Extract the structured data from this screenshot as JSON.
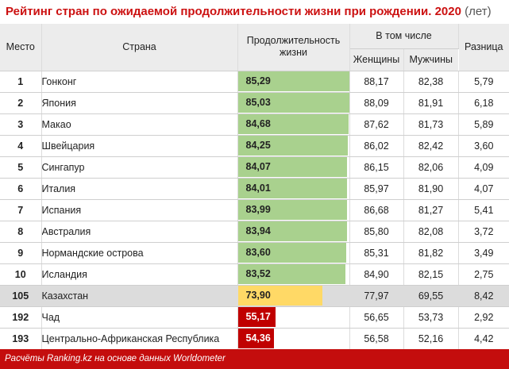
{
  "header": {
    "title": "Рейтинг стран по ожидаемой продолжительности жизни при рождении. 2020",
    "unit": "(лет)"
  },
  "columns": {
    "place": "Место",
    "country": "Страна",
    "life": "Продолжительность жизни",
    "group": "В том числе",
    "women": "Женщины",
    "men": "Мужчины",
    "diff": "Разница"
  },
  "colors": {
    "green": "#a9d18e",
    "yellow": "#ffd966",
    "red": "#c00000",
    "highlight": "#dcdcdc",
    "header": "#ececec",
    "footer": "#c40d0d"
  },
  "chart_data": {
    "type": "table",
    "bar_color_rule": "rank<=10 green, Kazakhstan yellow, bottom red",
    "rows": [
      {
        "rank": "1",
        "country": "Гонконг",
        "life": 85.29,
        "life_label": "85,29",
        "women": "88,17",
        "men": "82,38",
        "diff": "5,79",
        "tier": "green"
      },
      {
        "rank": "2",
        "country": "Япония",
        "life": 85.03,
        "life_label": "85,03",
        "women": "88,09",
        "men": "81,91",
        "diff": "6,18",
        "tier": "green"
      },
      {
        "rank": "3",
        "country": "Макао",
        "life": 84.68,
        "life_label": "84,68",
        "women": "87,62",
        "men": "81,73",
        "diff": "5,89",
        "tier": "green"
      },
      {
        "rank": "4",
        "country": "Швейцария",
        "life": 84.25,
        "life_label": "84,25",
        "women": "86,02",
        "men": "82,42",
        "diff": "3,60",
        "tier": "green"
      },
      {
        "rank": "5",
        "country": "Сингапур",
        "life": 84.07,
        "life_label": "84,07",
        "women": "86,15",
        "men": "82,06",
        "diff": "4,09",
        "tier": "green"
      },
      {
        "rank": "6",
        "country": "Италия",
        "life": 84.01,
        "life_label": "84,01",
        "women": "85,97",
        "men": "81,90",
        "diff": "4,07",
        "tier": "green"
      },
      {
        "rank": "7",
        "country": "Испания",
        "life": 83.99,
        "life_label": "83,99",
        "women": "86,68",
        "men": "81,27",
        "diff": "5,41",
        "tier": "green"
      },
      {
        "rank": "8",
        "country": "Австралия",
        "life": 83.94,
        "life_label": "83,94",
        "women": "85,80",
        "men": "82,08",
        "diff": "3,72",
        "tier": "green"
      },
      {
        "rank": "9",
        "country": "Нормандские острова",
        "life": 83.6,
        "life_label": "83,60",
        "women": "85,31",
        "men": "81,82",
        "diff": "3,49",
        "tier": "green"
      },
      {
        "rank": "10",
        "country": "Исландия",
        "life": 83.52,
        "life_label": "83,52",
        "women": "84,90",
        "men": "82,15",
        "diff": "2,75",
        "tier": "green"
      },
      {
        "rank": "105",
        "country": "Казахстан",
        "life": 73.9,
        "life_label": "73,90",
        "women": "77,97",
        "men": "69,55",
        "diff": "8,42",
        "tier": "yellow",
        "highlight": true
      },
      {
        "rank": "192",
        "country": "Чад",
        "life": 55.17,
        "life_label": "55,17",
        "women": "56,65",
        "men": "53,73",
        "diff": "2,92",
        "tier": "red"
      },
      {
        "rank": "193",
        "country": "Центрально-Африканская Республика",
        "life": 54.36,
        "life_label": "54,36",
        "women": "56,58",
        "men": "52,16",
        "diff": "4,42",
        "tier": "red"
      }
    ],
    "bar_max": 85.29
  },
  "footer": {
    "source": "Расчёты Ranking.kz на основе данных Worldometer"
  }
}
